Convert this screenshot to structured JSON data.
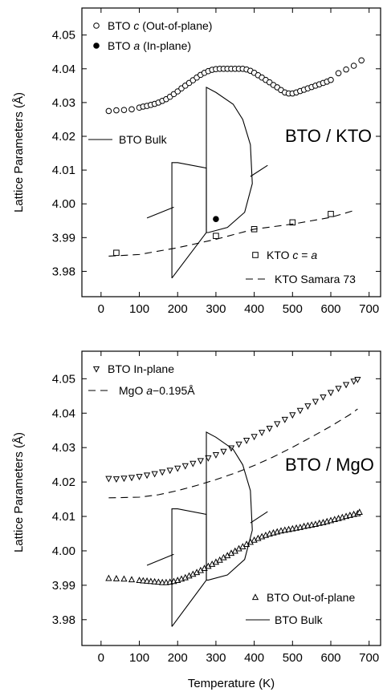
{
  "chart_data": [
    {
      "type": "scatter",
      "panel_label": "BTO / KTO",
      "xlabel": "",
      "ylabel": "Lattice Parameters (Å)",
      "xlim": [
        -50,
        730
      ],
      "ylim": [
        3.9725,
        4.058
      ],
      "x_ticks": [
        0,
        100,
        200,
        300,
        400,
        500,
        600,
        700
      ],
      "y_ticks": [
        3.98,
        3.99,
        4.0,
        4.01,
        4.02,
        4.03,
        4.04,
        4.05
      ],
      "y_tick_labels": [
        "3.98",
        "3.99",
        "4.00",
        "4.01",
        "4.02",
        "4.03",
        "4.04",
        "4.05"
      ],
      "series": [
        {
          "name": "BTO c (Out-of-plane)",
          "legend_parts": [
            "BTO ",
            "c",
            " (Out-of-plane)"
          ],
          "marker": "open-circle",
          "x": [
            20,
            40,
            60,
            80,
            100,
            110,
            120,
            130,
            140,
            150,
            160,
            170,
            180,
            190,
            200,
            210,
            220,
            230,
            240,
            250,
            260,
            270,
            280,
            290,
            300,
            310,
            320,
            330,
            340,
            350,
            360,
            370,
            380,
            390,
            400,
            410,
            420,
            430,
            440,
            450,
            460,
            470,
            480,
            490,
            500,
            510,
            520,
            530,
            540,
            550,
            560,
            570,
            580,
            590,
            600,
            620,
            640,
            660,
            680
          ],
          "y": [
            4.0275,
            4.0277,
            4.0278,
            4.028,
            4.0285,
            4.0288,
            4.029,
            4.0293,
            4.0296,
            4.03,
            4.0305,
            4.031,
            4.0317,
            4.0325,
            4.0333,
            4.0342,
            4.035,
            4.0358,
            4.0366,
            4.0374,
            4.0382,
            4.0388,
            4.0393,
            4.0397,
            4.0399,
            4.04,
            4.04,
            4.04,
            4.04,
            4.04,
            4.04,
            4.04,
            4.0398,
            4.0394,
            4.0388,
            4.0381,
            4.0374,
            4.0367,
            4.036,
            4.0352,
            4.0345,
            4.0337,
            4.033,
            4.0327,
            4.0327,
            4.033,
            4.0334,
            4.0338,
            4.0342,
            4.0346,
            4.035,
            4.0354,
            4.0358,
            4.0362,
            4.0367,
            4.0387,
            4.0398,
            4.0409,
            4.0425
          ]
        },
        {
          "name": "BTO a (In-plane)",
          "legend_parts": [
            "BTO ",
            "a",
            " (In-plane)"
          ],
          "marker": "filled-circle",
          "x": [
            300
          ],
          "y": [
            3.9955
          ]
        },
        {
          "name": "KTO c = a",
          "legend_parts": [
            "KTO ",
            "c",
            " = ",
            "a"
          ],
          "marker": "open-square",
          "x": [
            40,
            300,
            400,
            500,
            600
          ],
          "y": [
            3.9855,
            3.9905,
            3.9925,
            3.9945,
            3.997
          ]
        },
        {
          "name": "KTO Samara 73",
          "style": "dashed",
          "x": [
            20,
            100,
            200,
            300,
            400,
            500,
            600,
            660
          ],
          "y": [
            3.9845,
            3.985,
            3.987,
            3.9895,
            3.9925,
            3.994,
            3.996,
            3.998
          ]
        },
        {
          "name": "BTO Bulk",
          "style": "solid",
          "segments": [
            {
              "x": [
                120,
                190
              ],
              "y": [
                3.9958,
                3.999
              ]
            },
            {
              "x": [
                185,
                185,
                200,
                275,
                275,
                185
              ],
              "y": [
                3.978,
                4.0122,
                4.0122,
                4.0106,
                3.9915,
                3.978
              ]
            },
            {
              "x": [
                275,
                275,
                300,
                345,
                370,
                390,
                395,
                375,
                330,
                280,
                275
              ],
              "y": [
                3.9915,
                4.0345,
                4.033,
                4.0295,
                4.025,
                4.0175,
                4.006,
                3.9975,
                3.993,
                3.9915,
                3.9915
              ]
            },
            {
              "x": [
                390,
                435
              ],
              "y": [
                4.0081,
                4.0114
              ]
            }
          ]
        }
      ]
    },
    {
      "type": "scatter",
      "panel_label": "BTO / MgO",
      "xlabel": "Temperature (K)",
      "ylabel": "Lattice Parameters (Å)",
      "xlim": [
        -50,
        730
      ],
      "ylim": [
        3.9725,
        4.058
      ],
      "x_ticks": [
        0,
        100,
        200,
        300,
        400,
        500,
        600,
        700
      ],
      "y_ticks": [
        3.98,
        3.99,
        4.0,
        4.01,
        4.02,
        4.03,
        4.04,
        4.05
      ],
      "y_tick_labels": [
        "3.98",
        "3.99",
        "4.00",
        "4.01",
        "4.02",
        "4.03",
        "4.04",
        "4.05"
      ],
      "series": [
        {
          "name": "BTO In-plane",
          "marker": "open-triangle-down",
          "x": [
            20,
            40,
            60,
            80,
            100,
            120,
            140,
            160,
            180,
            200,
            220,
            240,
            260,
            280,
            300,
            320,
            340,
            360,
            380,
            400,
            420,
            440,
            460,
            480,
            500,
            520,
            540,
            560,
            580,
            600,
            620,
            640,
            660,
            670
          ],
          "y": [
            4.021,
            4.0209,
            4.0211,
            4.0213,
            4.0216,
            4.022,
            4.0224,
            4.0229,
            4.0234,
            4.024,
            4.0247,
            4.0254,
            4.0262,
            4.027,
            4.0279,
            4.0289,
            4.0299,
            4.031,
            4.0321,
            4.0332,
            4.0344,
            4.0356,
            4.0369,
            4.0382,
            4.0395,
            4.0408,
            4.0421,
            4.0434,
            4.0447,
            4.046,
            4.0472,
            4.0483,
            4.0493,
            4.0498
          ]
        },
        {
          "name": "MgO a−0.195Å",
          "legend_parts": [
            "MgO ",
            "a",
            "−0.195Å"
          ],
          "style": "dashed",
          "x": [
            20,
            100,
            150,
            200,
            250,
            300,
            350,
            400,
            450,
            500,
            550,
            600,
            650,
            670
          ],
          "y": [
            4.0154,
            4.0156,
            4.0163,
            4.0175,
            4.019,
            4.0207,
            4.0226,
            4.0248,
            4.0273,
            4.0301,
            4.0331,
            4.0362,
            4.0396,
            4.0412
          ]
        },
        {
          "name": "BTO Out-of-plane",
          "marker": "open-triangle-up",
          "x": [
            20,
            40,
            60,
            80,
            100,
            110,
            120,
            130,
            140,
            150,
            160,
            170,
            180,
            190,
            200,
            210,
            220,
            230,
            240,
            250,
            260,
            270,
            280,
            290,
            300,
            310,
            320,
            330,
            340,
            350,
            360,
            370,
            380,
            390,
            400,
            410,
            420,
            430,
            440,
            450,
            460,
            470,
            480,
            490,
            500,
            510,
            520,
            530,
            540,
            550,
            560,
            570,
            580,
            590,
            600,
            610,
            620,
            630,
            640,
            650,
            660,
            670,
            675
          ],
          "y": [
            3.992,
            3.9919,
            3.9918,
            3.9916,
            3.9914,
            3.9913,
            3.9912,
            3.9911,
            3.991,
            3.9909,
            3.9908,
            3.9908,
            3.9909,
            3.9911,
            3.9914,
            3.9918,
            3.9922,
            3.9927,
            3.9932,
            3.9937,
            3.9943,
            3.9949,
            3.9955,
            3.9961,
            3.9967,
            3.9973,
            3.998,
            3.9986,
            3.9993,
            3.9999,
            4.0006,
            4.0012,
            4.0019,
            4.0025,
            4.0031,
            4.0036,
            4.0041,
            4.0045,
            4.0049,
            4.0052,
            4.0055,
            4.0058,
            4.006,
            4.0062,
            4.0064,
            4.0066,
            4.0068,
            4.0071,
            4.0073,
            4.0075,
            4.0077,
            4.008,
            4.0082,
            4.0085,
            4.0088,
            4.0091,
            4.0094,
            4.0097,
            4.01,
            4.0103,
            4.0106,
            4.0108,
            4.0112
          ]
        },
        {
          "name": "BTO Bulk",
          "style": "solid",
          "segments": [
            {
              "x": [
                120,
                190
              ],
              "y": [
                3.9958,
                3.999
              ]
            },
            {
              "x": [
                185,
                185,
                200,
                275,
                275,
                185
              ],
              "y": [
                3.978,
                4.0122,
                4.0122,
                4.0106,
                3.9915,
                3.978
              ]
            },
            {
              "x": [
                275,
                275,
                300,
                345,
                370,
                390,
                395,
                375,
                330,
                280,
                275
              ],
              "y": [
                3.9915,
                4.0345,
                4.033,
                4.0295,
                4.025,
                4.0175,
                4.006,
                3.9975,
                3.993,
                3.9915,
                3.9915
              ]
            },
            {
              "x": [
                390,
                435
              ],
              "y": [
                4.0081,
                4.0114
              ]
            }
          ]
        }
      ]
    }
  ]
}
